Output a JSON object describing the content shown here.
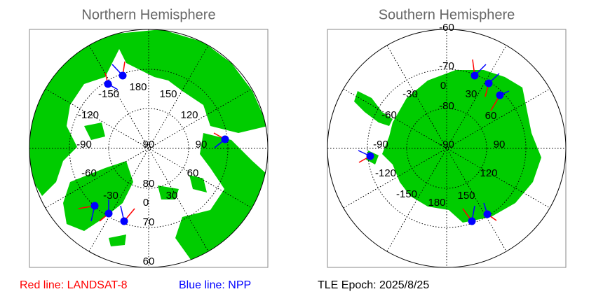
{
  "north": {
    "title": "Northern Hemisphere",
    "labels": [
      "180",
      "150",
      "120",
      "90",
      "60",
      "30",
      "0",
      "-30",
      "-60",
      "-90",
      "-120",
      "-150",
      "90",
      "80",
      "70",
      "60"
    ]
  },
  "south": {
    "title": "Southern Hemisphere",
    "labels": [
      "-60",
      "-70",
      "-80",
      "-90",
      "0",
      "30",
      "60",
      "90",
      "120",
      "150",
      "180",
      "-150",
      "-120",
      "-90",
      "-60",
      "-30"
    ]
  },
  "legend": {
    "red": "Red line: LANDSAT-8",
    "blue": "Blue line: NPP",
    "epoch": "TLE Epoch: 2025/8/25"
  }
}
